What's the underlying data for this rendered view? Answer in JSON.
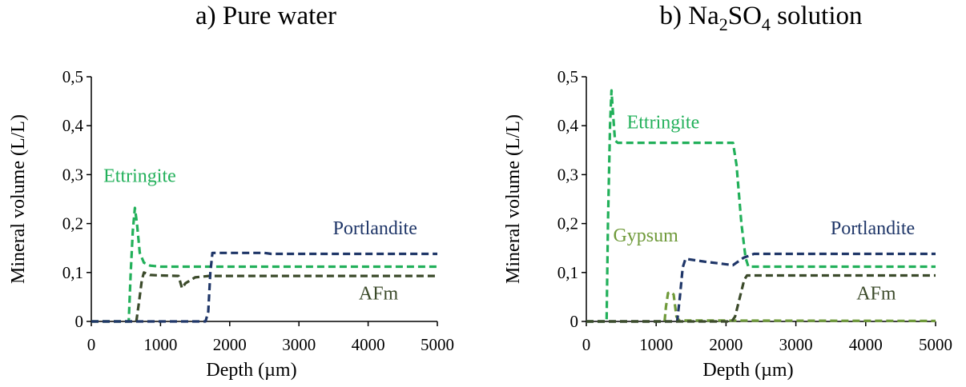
{
  "chart_data": [
    {
      "type": "line",
      "title_prefix": "a) ",
      "title": "Pure water",
      "xlabel": "Depth (µm)",
      "ylabel": "Mineral volume (L/L)",
      "xlim": [
        0,
        5000
      ],
      "ylim": [
        0,
        0.5
      ],
      "xticks": [
        "0",
        "1000",
        "2000",
        "3000",
        "4000",
        "5000"
      ],
      "yticks": [
        "0",
        "0,1",
        "0,2",
        "0,3",
        "0,4",
        "0,5"
      ],
      "grid": false,
      "series": [
        {
          "name": "Ettringite",
          "color": "#22b05a",
          "label_at": [
            700,
            0.285
          ],
          "points": [
            [
              0,
              0
            ],
            [
              540,
              0
            ],
            [
              570,
              0.1
            ],
            [
              600,
              0.185
            ],
            [
              630,
              0.232
            ],
            [
              660,
              0.2
            ],
            [
              700,
              0.14
            ],
            [
              760,
              0.12
            ],
            [
              850,
              0.114
            ],
            [
              1000,
              0.112
            ],
            [
              5000,
              0.112
            ]
          ]
        },
        {
          "name": "AFm",
          "color": "#3b4a2a",
          "label_at": [
            4150,
            0.045
          ],
          "points": [
            [
              0,
              0
            ],
            [
              650,
              0
            ],
            [
              690,
              0.04
            ],
            [
              730,
              0.085
            ],
            [
              760,
              0.1
            ],
            [
              850,
              0.095
            ],
            [
              1000,
              0.094
            ],
            [
              1260,
              0.093
            ],
            [
              1310,
              0.068
            ],
            [
              1360,
              0.078
            ],
            [
              1500,
              0.09
            ],
            [
              1700,
              0.093
            ],
            [
              5000,
              0.093
            ]
          ]
        },
        {
          "name": "Portlandite",
          "color": "#1f3668",
          "label_at": [
            4100,
            0.178
          ],
          "points": [
            [
              0,
              0
            ],
            [
              1650,
              0
            ],
            [
              1690,
              0.02
            ],
            [
              1720,
              0.1
            ],
            [
              1750,
              0.14
            ],
            [
              2500,
              0.14
            ],
            [
              2600,
              0.138
            ],
            [
              5000,
              0.138
            ]
          ]
        }
      ]
    },
    {
      "type": "line",
      "title_prefix": "b) ",
      "title_rich": [
        "Na",
        "2",
        "SO",
        "4",
        " solution"
      ],
      "xlabel": "Depth (µm)",
      "ylabel": "Mineral volume (L/L)",
      "xlim": [
        0,
        5000
      ],
      "ylim": [
        0,
        0.5
      ],
      "xticks": [
        "0",
        "1000",
        "2000",
        "3000",
        "4000",
        "5000"
      ],
      "yticks": [
        "0",
        "0,1",
        "0,2",
        "0,3",
        "0,4",
        "0,5"
      ],
      "grid": false,
      "series": [
        {
          "name": "Ettringite",
          "color": "#22b05a",
          "label_at": [
            1100,
            0.395
          ],
          "points": [
            [
              0,
              0
            ],
            [
              290,
              0
            ],
            [
              310,
              0.2
            ],
            [
              340,
              0.4
            ],
            [
              360,
              0.472
            ],
            [
              380,
              0.43
            ],
            [
              410,
              0.37
            ],
            [
              450,
              0.365
            ],
            [
              2100,
              0.365
            ],
            [
              2150,
              0.32
            ],
            [
              2220,
              0.2
            ],
            [
              2280,
              0.13
            ],
            [
              2320,
              0.112
            ],
            [
              2500,
              0.112
            ],
            [
              5000,
              0.112
            ]
          ]
        },
        {
          "name": "Gypsum",
          "color": "#6f9a3a",
          "label_at": [
            850,
            0.163
          ],
          "points": [
            [
              0,
              0
            ],
            [
              1120,
              0
            ],
            [
              1140,
              0.03
            ],
            [
              1170,
              0.058
            ],
            [
              1210,
              0.06
            ],
            [
              1250,
              0.055
            ],
            [
              1290,
              0.01
            ],
            [
              1330,
              0.002
            ],
            [
              5000,
              0.001
            ]
          ]
        },
        {
          "name": "Portlandite",
          "color": "#1f3668",
          "label_at": [
            4100,
            0.178
          ],
          "points": [
            [
              0,
              0
            ],
            [
              1300,
              0
            ],
            [
              1340,
              0.05
            ],
            [
              1380,
              0.11
            ],
            [
              1420,
              0.128
            ],
            [
              1700,
              0.122
            ],
            [
              2100,
              0.115
            ],
            [
              2250,
              0.13
            ],
            [
              2400,
              0.138
            ],
            [
              5000,
              0.138
            ]
          ]
        },
        {
          "name": "AFm",
          "color": "#3b4a2a",
          "label_at": [
            4150,
            0.045
          ],
          "points": [
            [
              0,
              0
            ],
            [
              2080,
              0
            ],
            [
              2130,
              0.01
            ],
            [
              2200,
              0.05
            ],
            [
              2260,
              0.085
            ],
            [
              2300,
              0.094
            ],
            [
              5000,
              0.094
            ]
          ]
        }
      ]
    }
  ]
}
